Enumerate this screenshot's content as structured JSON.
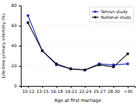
{
  "chart_data": {
    "type": "line",
    "xlabel": "Age at first marriage",
    "ylabel": "Life-time primary infertility (%)",
    "categories": [
      "10-12",
      "13-15",
      "16-18",
      "19-21",
      "22-24",
      "25-27",
      "28-30",
      ">30"
    ],
    "series": [
      {
        "name": "Tehran study",
        "color": "#2233bb",
        "marker": "square",
        "values": [
          70,
          35,
          21,
          17,
          16,
          22,
          21,
          22
        ]
      },
      {
        "name": "National study",
        "color": "#111111",
        "marker": "square",
        "values": [
          63,
          35,
          22,
          17,
          16,
          21,
          19,
          32
        ]
      }
    ],
    "ylim": [
      0,
      80
    ],
    "yticks": [
      0,
      20,
      40,
      60,
      80
    ],
    "grid": true,
    "legend": "upper right"
  }
}
